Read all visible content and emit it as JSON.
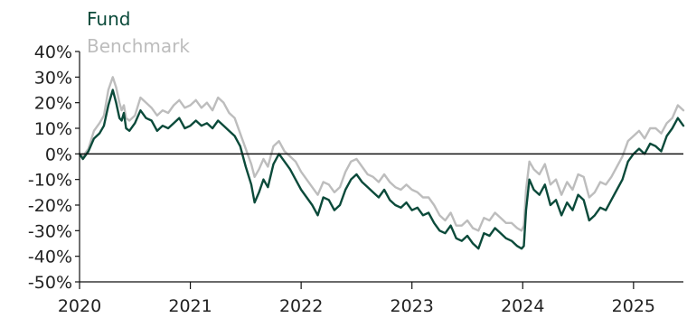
{
  "chart_data": {
    "type": "line",
    "title": "",
    "xlabel": "",
    "ylabel": "",
    "ylim": [
      -50,
      40
    ],
    "xlim": [
      2020,
      2025.45
    ],
    "y_tick_values": [
      40,
      30,
      20,
      10,
      0,
      -10,
      -20,
      -30,
      -40,
      -50
    ],
    "y_tick_labels": [
      "40%",
      "30%",
      "20%",
      "10%",
      "0%",
      "-10%",
      "-20%",
      "-30%",
      "-40%",
      "-50%"
    ],
    "x_tick_values": [
      2020,
      2021,
      2022,
      2023,
      2024,
      2025
    ],
    "x_tick_labels": [
      "2020",
      "2021",
      "2022",
      "2023",
      "2024",
      "2025"
    ],
    "grid": false,
    "legend": {
      "placement": "top-left"
    },
    "colors": {
      "fund": "#0b4a3a",
      "benchmark": "#bdbdbd",
      "axis": "#111111"
    },
    "series": [
      {
        "name": "Fund",
        "x": [
          2020.0,
          2020.03,
          2020.08,
          2020.13,
          2020.18,
          2020.22,
          2020.26,
          2020.3,
          2020.33,
          2020.36,
          2020.38,
          2020.4,
          2020.42,
          2020.45,
          2020.5,
          2020.55,
          2020.6,
          2020.65,
          2020.7,
          2020.75,
          2020.8,
          2020.85,
          2020.9,
          2020.95,
          2021.0,
          2021.05,
          2021.1,
          2021.15,
          2021.2,
          2021.25,
          2021.3,
          2021.35,
          2021.4,
          2021.45,
          2021.5,
          2021.55,
          2021.58,
          2021.62,
          2021.66,
          2021.7,
          2021.75,
          2021.8,
          2021.85,
          2021.9,
          2021.95,
          2022.0,
          2022.05,
          2022.1,
          2022.15,
          2022.2,
          2022.25,
          2022.3,
          2022.35,
          2022.4,
          2022.45,
          2022.5,
          2022.55,
          2022.6,
          2022.65,
          2022.7,
          2022.75,
          2022.8,
          2022.85,
          2022.9,
          2022.95,
          2023.0,
          2023.05,
          2023.1,
          2023.15,
          2023.2,
          2023.25,
          2023.3,
          2023.35,
          2023.4,
          2023.45,
          2023.5,
          2023.55,
          2023.6,
          2023.65,
          2023.7,
          2023.75,
          2023.8,
          2023.85,
          2023.9,
          2023.95,
          2023.99,
          2024.01,
          2024.03,
          2024.06,
          2024.1,
          2024.15,
          2024.2,
          2024.25,
          2024.3,
          2024.35,
          2024.4,
          2024.45,
          2024.5,
          2024.55,
          2024.6,
          2024.65,
          2024.7,
          2024.75,
          2024.8,
          2024.85,
          2024.9,
          2024.95,
          2025.0,
          2025.05,
          2025.1,
          2025.15,
          2025.2,
          2025.25,
          2025.3,
          2025.35,
          2025.4,
          2025.45
        ],
        "y": [
          0,
          -2,
          1,
          6,
          8,
          11,
          19,
          25,
          20,
          14,
          13,
          16,
          10,
          9,
          12,
          17,
          14,
          13,
          9,
          11,
          10,
          12,
          14,
          10,
          11,
          13,
          11,
          12,
          10,
          13,
          11,
          9,
          7,
          3,
          -5,
          -12,
          -19,
          -15,
          -10,
          -13,
          -4,
          0,
          -3,
          -6,
          -10,
          -14,
          -17,
          -20,
          -24,
          -17,
          -18,
          -22,
          -20,
          -14,
          -10,
          -8,
          -11,
          -13,
          -15,
          -17,
          -14,
          -18,
          -20,
          -21,
          -19,
          -22,
          -21,
          -24,
          -23,
          -27,
          -30,
          -31,
          -28,
          -33,
          -34,
          -32,
          -35,
          -37,
          -31,
          -32,
          -29,
          -31,
          -33,
          -34,
          -36,
          -37,
          -36,
          -22,
          -10,
          -14,
          -16,
          -12,
          -20,
          -18,
          -24,
          -19,
          -22,
          -16,
          -18,
          -26,
          -24,
          -21,
          -22,
          -18,
          -14,
          -10,
          -3,
          0,
          2,
          0,
          4,
          3,
          1,
          7,
          10,
          14,
          11
        ]
      },
      {
        "name": "Benchmark",
        "x": [
          2020.0,
          2020.03,
          2020.08,
          2020.13,
          2020.18,
          2020.22,
          2020.26,
          2020.3,
          2020.33,
          2020.36,
          2020.38,
          2020.4,
          2020.42,
          2020.45,
          2020.5,
          2020.55,
          2020.6,
          2020.65,
          2020.7,
          2020.75,
          2020.8,
          2020.85,
          2020.9,
          2020.95,
          2021.0,
          2021.05,
          2021.1,
          2021.15,
          2021.2,
          2021.25,
          2021.3,
          2021.35,
          2021.4,
          2021.45,
          2021.5,
          2021.55,
          2021.58,
          2021.62,
          2021.66,
          2021.7,
          2021.75,
          2021.8,
          2021.85,
          2021.9,
          2021.95,
          2022.0,
          2022.05,
          2022.1,
          2022.15,
          2022.2,
          2022.25,
          2022.3,
          2022.35,
          2022.4,
          2022.45,
          2022.5,
          2022.55,
          2022.6,
          2022.65,
          2022.7,
          2022.75,
          2022.8,
          2022.85,
          2022.9,
          2022.95,
          2023.0,
          2023.05,
          2023.1,
          2023.15,
          2023.2,
          2023.25,
          2023.3,
          2023.35,
          2023.4,
          2023.45,
          2023.5,
          2023.55,
          2023.6,
          2023.65,
          2023.7,
          2023.75,
          2023.8,
          2023.85,
          2023.9,
          2023.95,
          2023.99,
          2024.01,
          2024.03,
          2024.06,
          2024.1,
          2024.15,
          2024.2,
          2024.25,
          2024.3,
          2024.35,
          2024.4,
          2024.45,
          2024.5,
          2024.55,
          2024.6,
          2024.65,
          2024.7,
          2024.75,
          2024.8,
          2024.85,
          2024.9,
          2024.95,
          2025.0,
          2025.05,
          2025.1,
          2025.15,
          2025.2,
          2025.25,
          2025.3,
          2025.35,
          2025.4,
          2025.45
        ],
        "y": [
          0,
          -1,
          2,
          9,
          12,
          15,
          25,
          30,
          26,
          20,
          17,
          19,
          14,
          13,
          15,
          22,
          20,
          18,
          15,
          17,
          16,
          19,
          21,
          18,
          19,
          21,
          18,
          20,
          17,
          22,
          20,
          16,
          14,
          8,
          2,
          -4,
          -9,
          -6,
          -2,
          -5,
          3,
          5,
          1,
          -1,
          -3,
          -7,
          -10,
          -13,
          -16,
          -11,
          -12,
          -15,
          -13,
          -7,
          -3,
          -2,
          -5,
          -8,
          -9,
          -11,
          -8,
          -11,
          -13,
          -14,
          -12,
          -14,
          -15,
          -17,
          -17,
          -20,
          -24,
          -26,
          -23,
          -28,
          -28,
          -26,
          -29,
          -30,
          -25,
          -26,
          -23,
          -25,
          -27,
          -27,
          -29,
          -30,
          -28,
          -14,
          -3,
          -6,
          -8,
          -4,
          -12,
          -10,
          -16,
          -11,
          -14,
          -8,
          -9,
          -17,
          -15,
          -11,
          -12,
          -9,
          -5,
          -1,
          5,
          7,
          9,
          6,
          10,
          10,
          8,
          12,
          14,
          19,
          17
        ]
      }
    ]
  }
}
